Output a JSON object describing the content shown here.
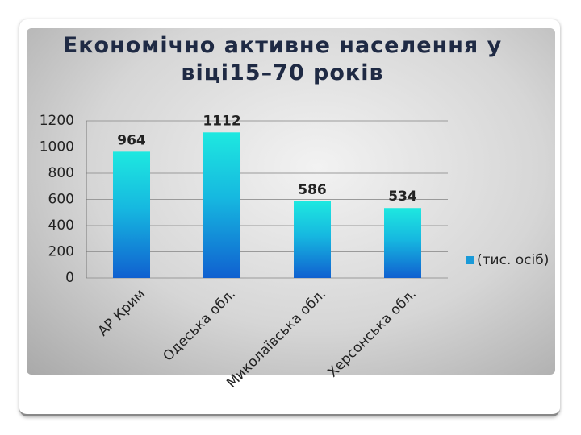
{
  "chart_data": {
    "type": "bar",
    "title": "Економічно активне населення у віці15–70 років",
    "categories": [
      "АР Крим",
      "Одеська обл.",
      "Миколаївська обл.",
      "Херсонська обл."
    ],
    "series": [
      {
        "name": "(тис. осіб)",
        "color": "#1a9ad8",
        "values": [
          964,
          1112,
          586,
          534
        ]
      }
    ],
    "ylim": [
      0,
      1200
    ],
    "yticks": [
      0,
      200,
      400,
      600,
      800,
      1000,
      1200
    ],
    "grid": true,
    "legend": "right"
  }
}
